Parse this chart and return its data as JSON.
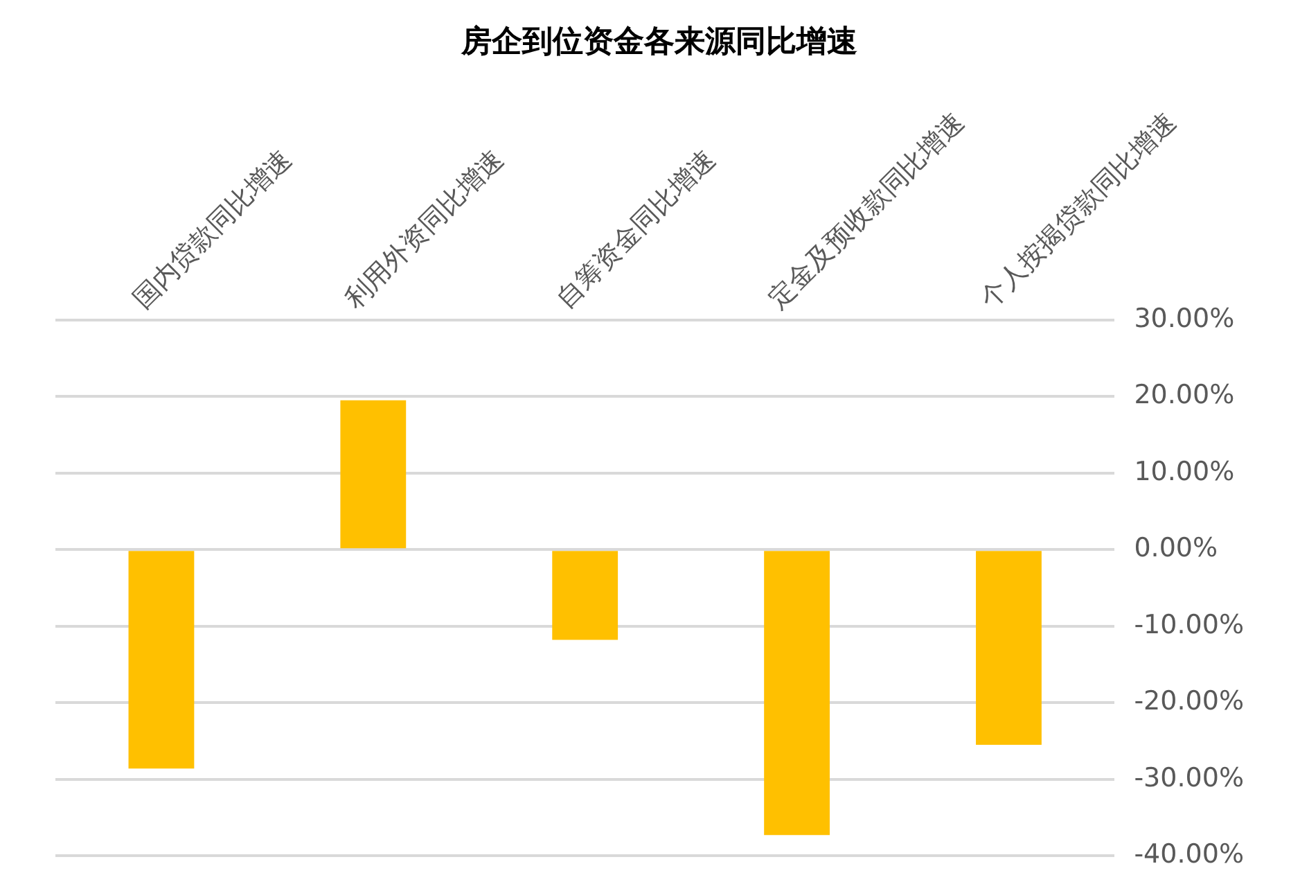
{
  "chart_data": {
    "type": "bar",
    "title": "房企到位资金各来源同比增速",
    "categories": [
      "国内贷款同比增速",
      "利用外资同比增速",
      "自筹资金同比增速",
      "定金及预收款同比增速",
      "个人按揭贷款同比增速"
    ],
    "values": [
      -28.6,
      19.5,
      -11.8,
      -37.3,
      -25.5
    ],
    "color": "#ffc000",
    "ylim": [
      -40,
      30
    ],
    "yticks": [
      {
        "value": 30,
        "label": "30.00%"
      },
      {
        "value": 20,
        "label": "20.00%"
      },
      {
        "value": 10,
        "label": "10.00%"
      },
      {
        "value": 0,
        "label": "0.00%"
      },
      {
        "value": -10,
        "label": "-10.00%"
      },
      {
        "value": -20,
        "label": "-20.00%"
      },
      {
        "value": -30,
        "label": "-30.00%"
      },
      {
        "value": -40,
        "label": "-40.00%"
      }
    ],
    "grid": "y"
  }
}
